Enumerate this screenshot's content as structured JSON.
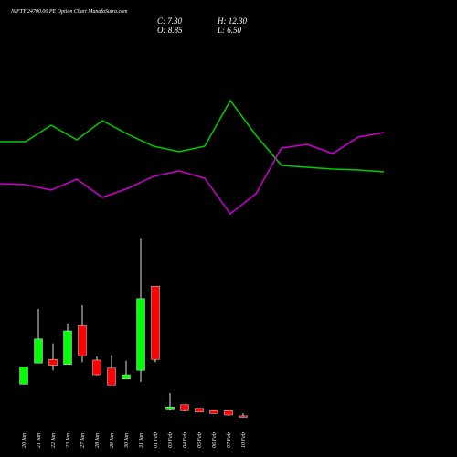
{
  "chart_data": {
    "type": "candlestick",
    "title": "NIFTY 24700.00 PE Option  Chart MunafaSutra.com",
    "ohlc_labels": [
      "C: 7.30",
      "O: 8.85",
      "H: 12.30",
      "L: 6.50"
    ],
    "categories": [
      "20 Jan",
      "21 Jan",
      "22 Jan",
      "23 Jan",
      "27 Jan",
      "28 Jan",
      "29 Jan",
      "30 Jan",
      "31 Jan",
      "01 Feb",
      "03 Feb",
      "04 Feb",
      "05 Feb",
      "06 Feb",
      "07 Feb",
      "10 Feb"
    ],
    "open": [
      52,
      81,
      86,
      79,
      132,
      85,
      74,
      59,
      71,
      186,
      17,
      24,
      19,
      16,
      16,
      8.85
    ],
    "high": [
      76,
      155,
      108,
      135,
      160,
      90,
      92,
      84,
      252,
      186,
      40,
      24,
      19,
      16,
      16,
      12.3
    ],
    "low": [
      52,
      81,
      71,
      79,
      82,
      64,
      51,
      59,
      55,
      82,
      16,
      15,
      14,
      12,
      9,
      6.5
    ],
    "close": [
      76,
      114,
      78,
      125,
      91,
      65,
      51,
      65,
      169,
      86,
      21,
      16,
      14,
      12,
      10,
      7.3
    ],
    "up_color": "#00ff00",
    "down_color": "#ff0000",
    "ylim": [
      -47.5,
      577.5
    ],
    "lines": [
      {
        "color": "#00cc00",
        "values": [
          345,
          345,
          363,
          347,
          368,
          353,
          340,
          334,
          340,
          390,
          352,
          319,
          317,
          315,
          314,
          312
        ]
      },
      {
        "color": "#cc00cc",
        "values": [
          299,
          298,
          292,
          304,
          284,
          294,
          307,
          313,
          305,
          266,
          288,
          338,
          342,
          332,
          350,
          355
        ]
      }
    ],
    "line_ylim": [
      0,
      500
    ]
  }
}
